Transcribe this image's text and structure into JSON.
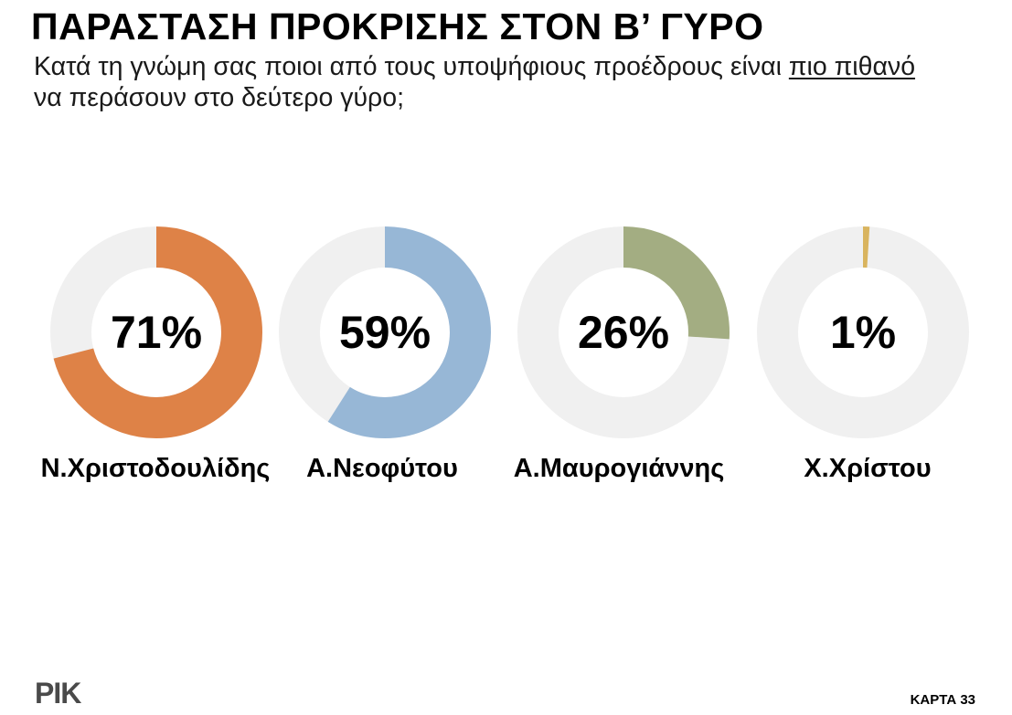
{
  "title": "ΠΑΡΑΣΤΑΣΗ ΠΡΟΚΡΙΣΗΣ ΣΤΟΝ Β’ ΓΥΡΟ",
  "subtitle": {
    "part1": "Κατά τη γνώμη σας ποιοι από τους υποψήφιους προέδρους είναι ",
    "underlined": "πιο πιθανό ",
    "part2": "να περάσουν στο δεύτερο γύρο;"
  },
  "chart_data": {
    "type": "pie",
    "variant": "donut",
    "categories": [
      "Ν.Χριστοδουλίδης",
      "Α.Νεοφύτου",
      "Α.Μαυρογιάννης",
      "Χ.Χρίστου"
    ],
    "values": [
      71,
      59,
      26,
      1
    ],
    "labels": [
      "71%",
      "59%",
      "26%",
      "1%"
    ],
    "unit": "%",
    "colors": [
      "#DE8247",
      "#97B7D6",
      "#A3AD82",
      "#D9B45E"
    ],
    "remainder_color": "#F0F0F0"
  },
  "footer": {
    "logo": "ΡΙΚ",
    "card": "ΚΑΡΤΑ 33"
  }
}
